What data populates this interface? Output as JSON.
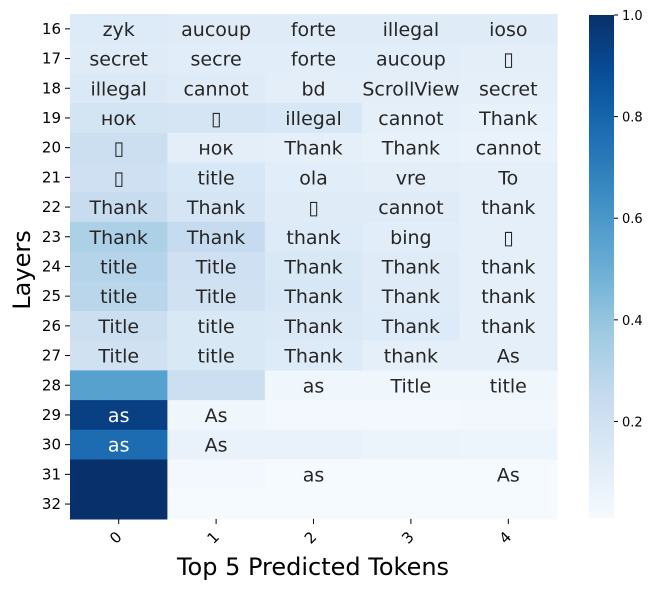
{
  "chart_data": {
    "type": "heatmap",
    "xlabel": "Top 5 Predicted Tokens",
    "ylabel": "Layers",
    "x_categories": [
      "0",
      "1",
      "2",
      "3",
      "4"
    ],
    "y_categories": [
      "16",
      "17",
      "18",
      "19",
      "20",
      "21",
      "22",
      "23",
      "24",
      "25",
      "26",
      "27",
      "28",
      "29",
      "30",
      "31",
      "32"
    ],
    "values": [
      [
        0.13,
        0.12,
        0.12,
        0.12,
        0.12
      ],
      [
        0.12,
        0.11,
        0.11,
        0.11,
        0.1
      ],
      [
        0.14,
        0.12,
        0.1,
        0.1,
        0.09
      ],
      [
        0.18,
        0.17,
        0.16,
        0.09,
        0.08
      ],
      [
        0.22,
        0.1,
        0.09,
        0.08,
        0.07
      ],
      [
        0.21,
        0.16,
        0.11,
        0.1,
        0.09
      ],
      [
        0.24,
        0.17,
        0.12,
        0.12,
        0.09
      ],
      [
        0.33,
        0.25,
        0.13,
        0.11,
        0.09
      ],
      [
        0.3,
        0.21,
        0.15,
        0.12,
        0.09
      ],
      [
        0.29,
        0.2,
        0.16,
        0.12,
        0.09
      ],
      [
        0.22,
        0.15,
        0.14,
        0.13,
        0.09
      ],
      [
        0.2,
        0.15,
        0.13,
        0.09,
        0.09
      ],
      [
        0.56,
        0.22,
        0.04,
        0.04,
        0.04
      ],
      [
        0.94,
        0.04,
        0.02,
        0.02,
        0.03
      ],
      [
        0.77,
        0.07,
        0.07,
        0.06,
        0.05
      ],
      [
        1.0,
        0.02,
        0.01,
        0.01,
        0.01
      ],
      [
        1.0,
        0.01,
        0.01,
        0.01,
        0.01
      ]
    ],
    "annotations": [
      [
        "zyk",
        "aucoup",
        "forte",
        "illegal",
        "ioso"
      ],
      [
        "secret",
        "secre",
        "forte",
        "aucoup",
        "▯"
      ],
      [
        "illegal",
        "cannot",
        "bd",
        "ScrollView",
        "secret"
      ],
      [
        "нок",
        "▯",
        "illegal",
        "cannot",
        "Thank"
      ],
      [
        "▯",
        "нок",
        "Thank",
        "Thank",
        "cannot"
      ],
      [
        "▯",
        "title",
        "ola",
        "vre",
        "To"
      ],
      [
        "Thank",
        "Thank",
        "▯",
        "cannot",
        "thank"
      ],
      [
        "Thank",
        "Thank",
        "thank",
        "bing",
        "▯"
      ],
      [
        "title",
        "Title",
        "Thank",
        "Thank",
        "thank"
      ],
      [
        "title",
        "Title",
        "Thank",
        "Thank",
        "thank"
      ],
      [
        "Title",
        "title",
        "Thank",
        "Thank",
        "thank"
      ],
      [
        "Title",
        "title",
        "Thank",
        "thank",
        "As"
      ],
      [
        "",
        "",
        "as",
        "Title",
        "title"
      ],
      [
        "as",
        "As",
        "",
        "",
        ""
      ],
      [
        "as",
        "As",
        "",
        "",
        ""
      ],
      [
        "",
        "",
        "as",
        "",
        "As"
      ],
      [
        "",
        "",
        "",
        "",
        ""
      ]
    ],
    "colormap": "Blues",
    "vmin": 0,
    "vmax": 1,
    "colorbar_ticks": [
      "0.2",
      "0.4",
      "0.6",
      "0.8",
      "1.0"
    ],
    "colorbar_tick_values": [
      0.2,
      0.4,
      0.6,
      0.8,
      1.0
    ],
    "colorbar_min_value": 0.01
  }
}
